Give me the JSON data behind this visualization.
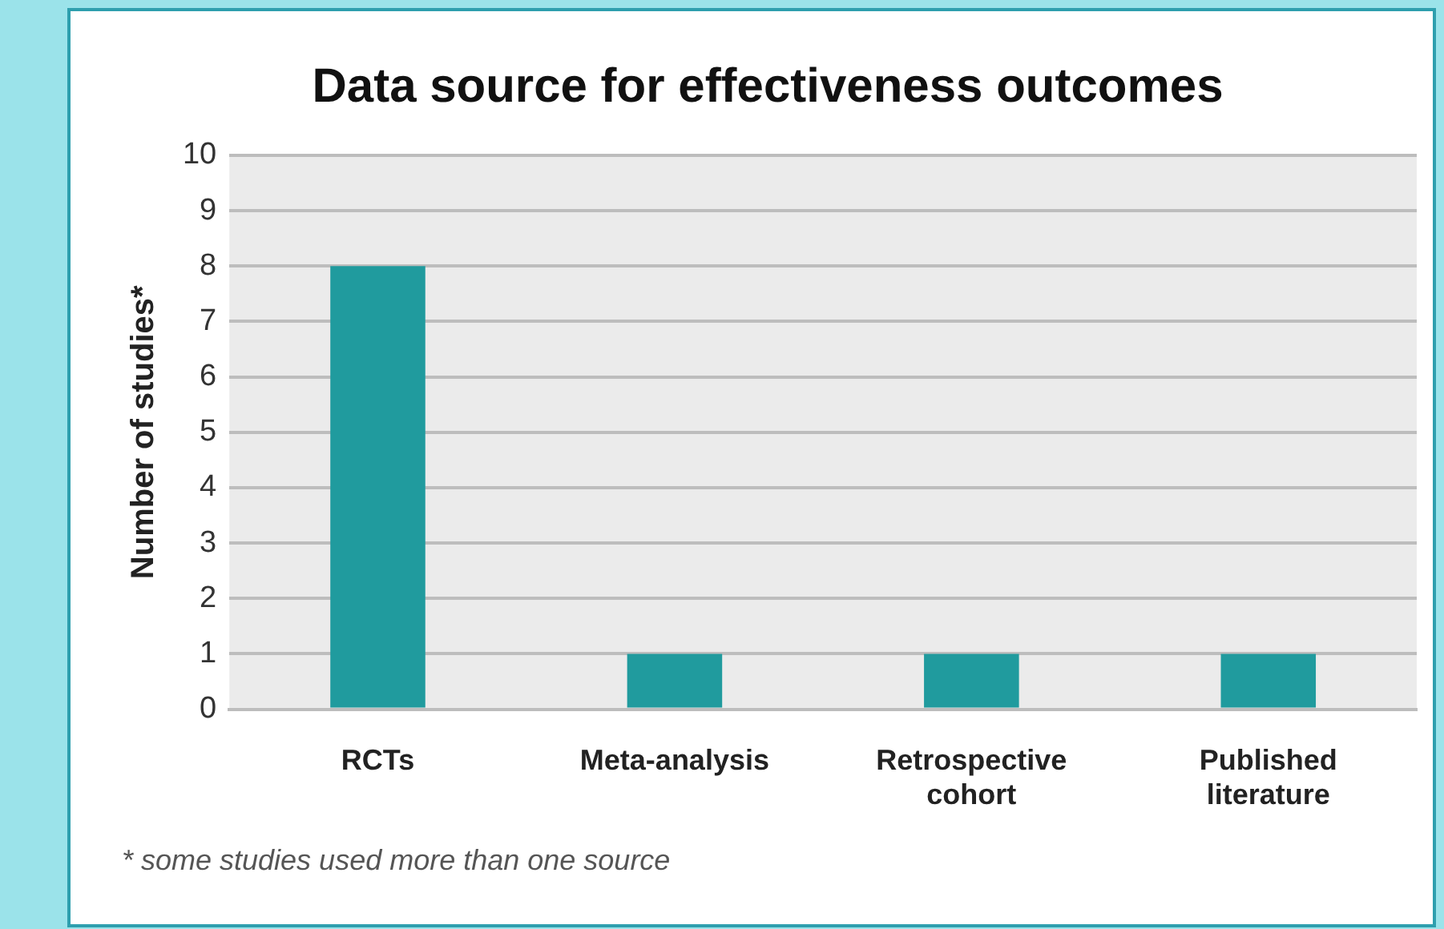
{
  "chart_data": {
    "type": "bar",
    "title": "Data source for effectiveness outcomes",
    "ylabel": "Number of studies*",
    "categories": [
      "RCTs",
      "Meta-analysis",
      "Retrospective cohort",
      "Published literature"
    ],
    "values": [
      8,
      1,
      1,
      1
    ],
    "color": "#209b9e",
    "ylim": [
      0,
      10
    ],
    "yticks": [
      0,
      1,
      2,
      3,
      4,
      5,
      6,
      7,
      8,
      9,
      10
    ],
    "grid": "y",
    "legend": false,
    "annotations": [
      "* some studies used more than one source"
    ]
  }
}
